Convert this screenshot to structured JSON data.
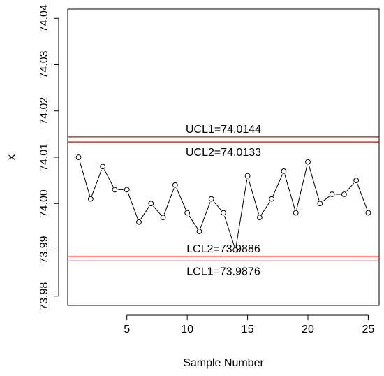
{
  "chart_data": {
    "type": "line",
    "xlabel": "Sample Number",
    "ylabel": "x̅",
    "xlim": [
      0.1,
      25.9
    ],
    "ylim": [
      73.978,
      74.042
    ],
    "x_ticks": [
      5,
      10,
      15,
      20,
      25
    ],
    "y_ticks": [
      73.98,
      73.99,
      74.0,
      74.01,
      74.02,
      74.03,
      74.04
    ],
    "grid": false,
    "x": [
      1,
      2,
      3,
      4,
      5,
      6,
      7,
      8,
      9,
      10,
      11,
      12,
      13,
      14,
      15,
      16,
      17,
      18,
      19,
      20,
      21,
      22,
      23,
      24,
      25
    ],
    "values": [
      74.01,
      74.001,
      74.008,
      74.003,
      74.003,
      73.996,
      74.0,
      73.997,
      74.004,
      73.998,
      73.994,
      74.001,
      73.998,
      73.99,
      74.006,
      73.997,
      74.001,
      74.007,
      73.998,
      74.009,
      74.0,
      74.002,
      74.002,
      74.005,
      73.998
    ],
    "limits": [
      {
        "label": "UCL1=74.0144",
        "value": 74.0144,
        "label_side": "above"
      },
      {
        "label": "UCL2=74.0133",
        "value": 74.0133,
        "label_side": "below"
      },
      {
        "label": "LCL2=73.9886",
        "value": 73.9886,
        "label_side": "above"
      },
      {
        "label": "LCL1=73.9876",
        "value": 73.9876,
        "label_side": "below"
      }
    ],
    "limit_color": "#e00000",
    "point_color": "#000000"
  }
}
